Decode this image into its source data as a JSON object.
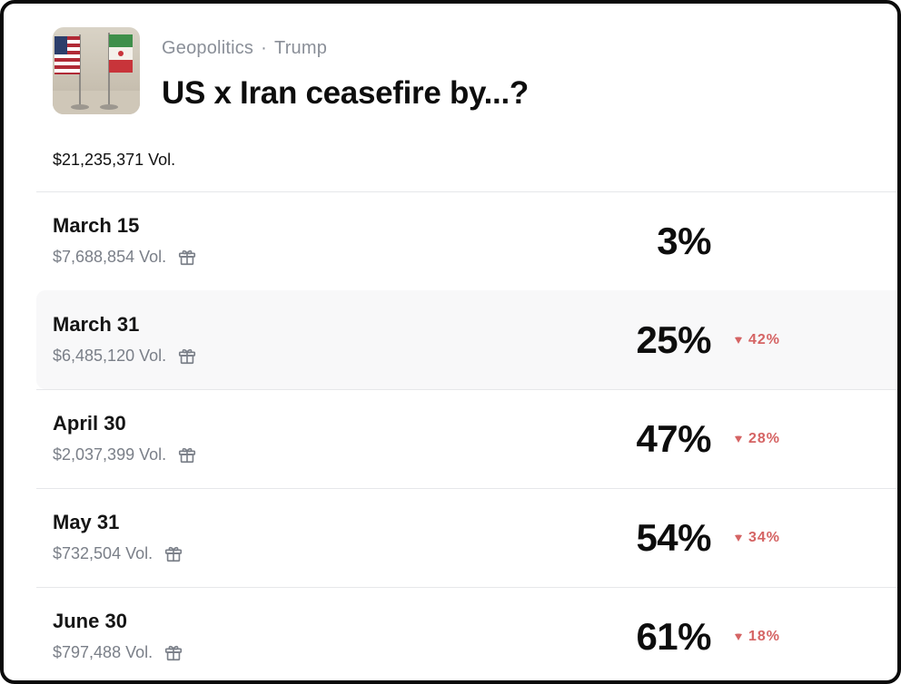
{
  "header": {
    "breadcrumb": [
      "Geopolitics",
      "Trump"
    ],
    "breadcrumb_separator": "·",
    "title": "US x Iran ceasefire by...?",
    "thumbnail_icon": "us-iran-flags-image"
  },
  "total_volume": "$21,235,371 Vol.",
  "colors": {
    "change_down": "#d56464",
    "secondary_text": "#7a7f88",
    "hover_row": "#f8f8f9"
  },
  "rows": [
    {
      "date": "March 15",
      "volume": "$7,688,854 Vol.",
      "percent": "3%",
      "change": ""
    },
    {
      "date": "March 31",
      "volume": "$6,485,120 Vol.",
      "percent": "25%",
      "change": "42%"
    },
    {
      "date": "April 30",
      "volume": "$2,037,399 Vol.",
      "percent": "47%",
      "change": "28%"
    },
    {
      "date": "May 31",
      "volume": "$732,504 Vol.",
      "percent": "54%",
      "change": "34%"
    },
    {
      "date": "June 30",
      "volume": "$797,488 Vol.",
      "percent": "61%",
      "change": "18%"
    }
  ]
}
